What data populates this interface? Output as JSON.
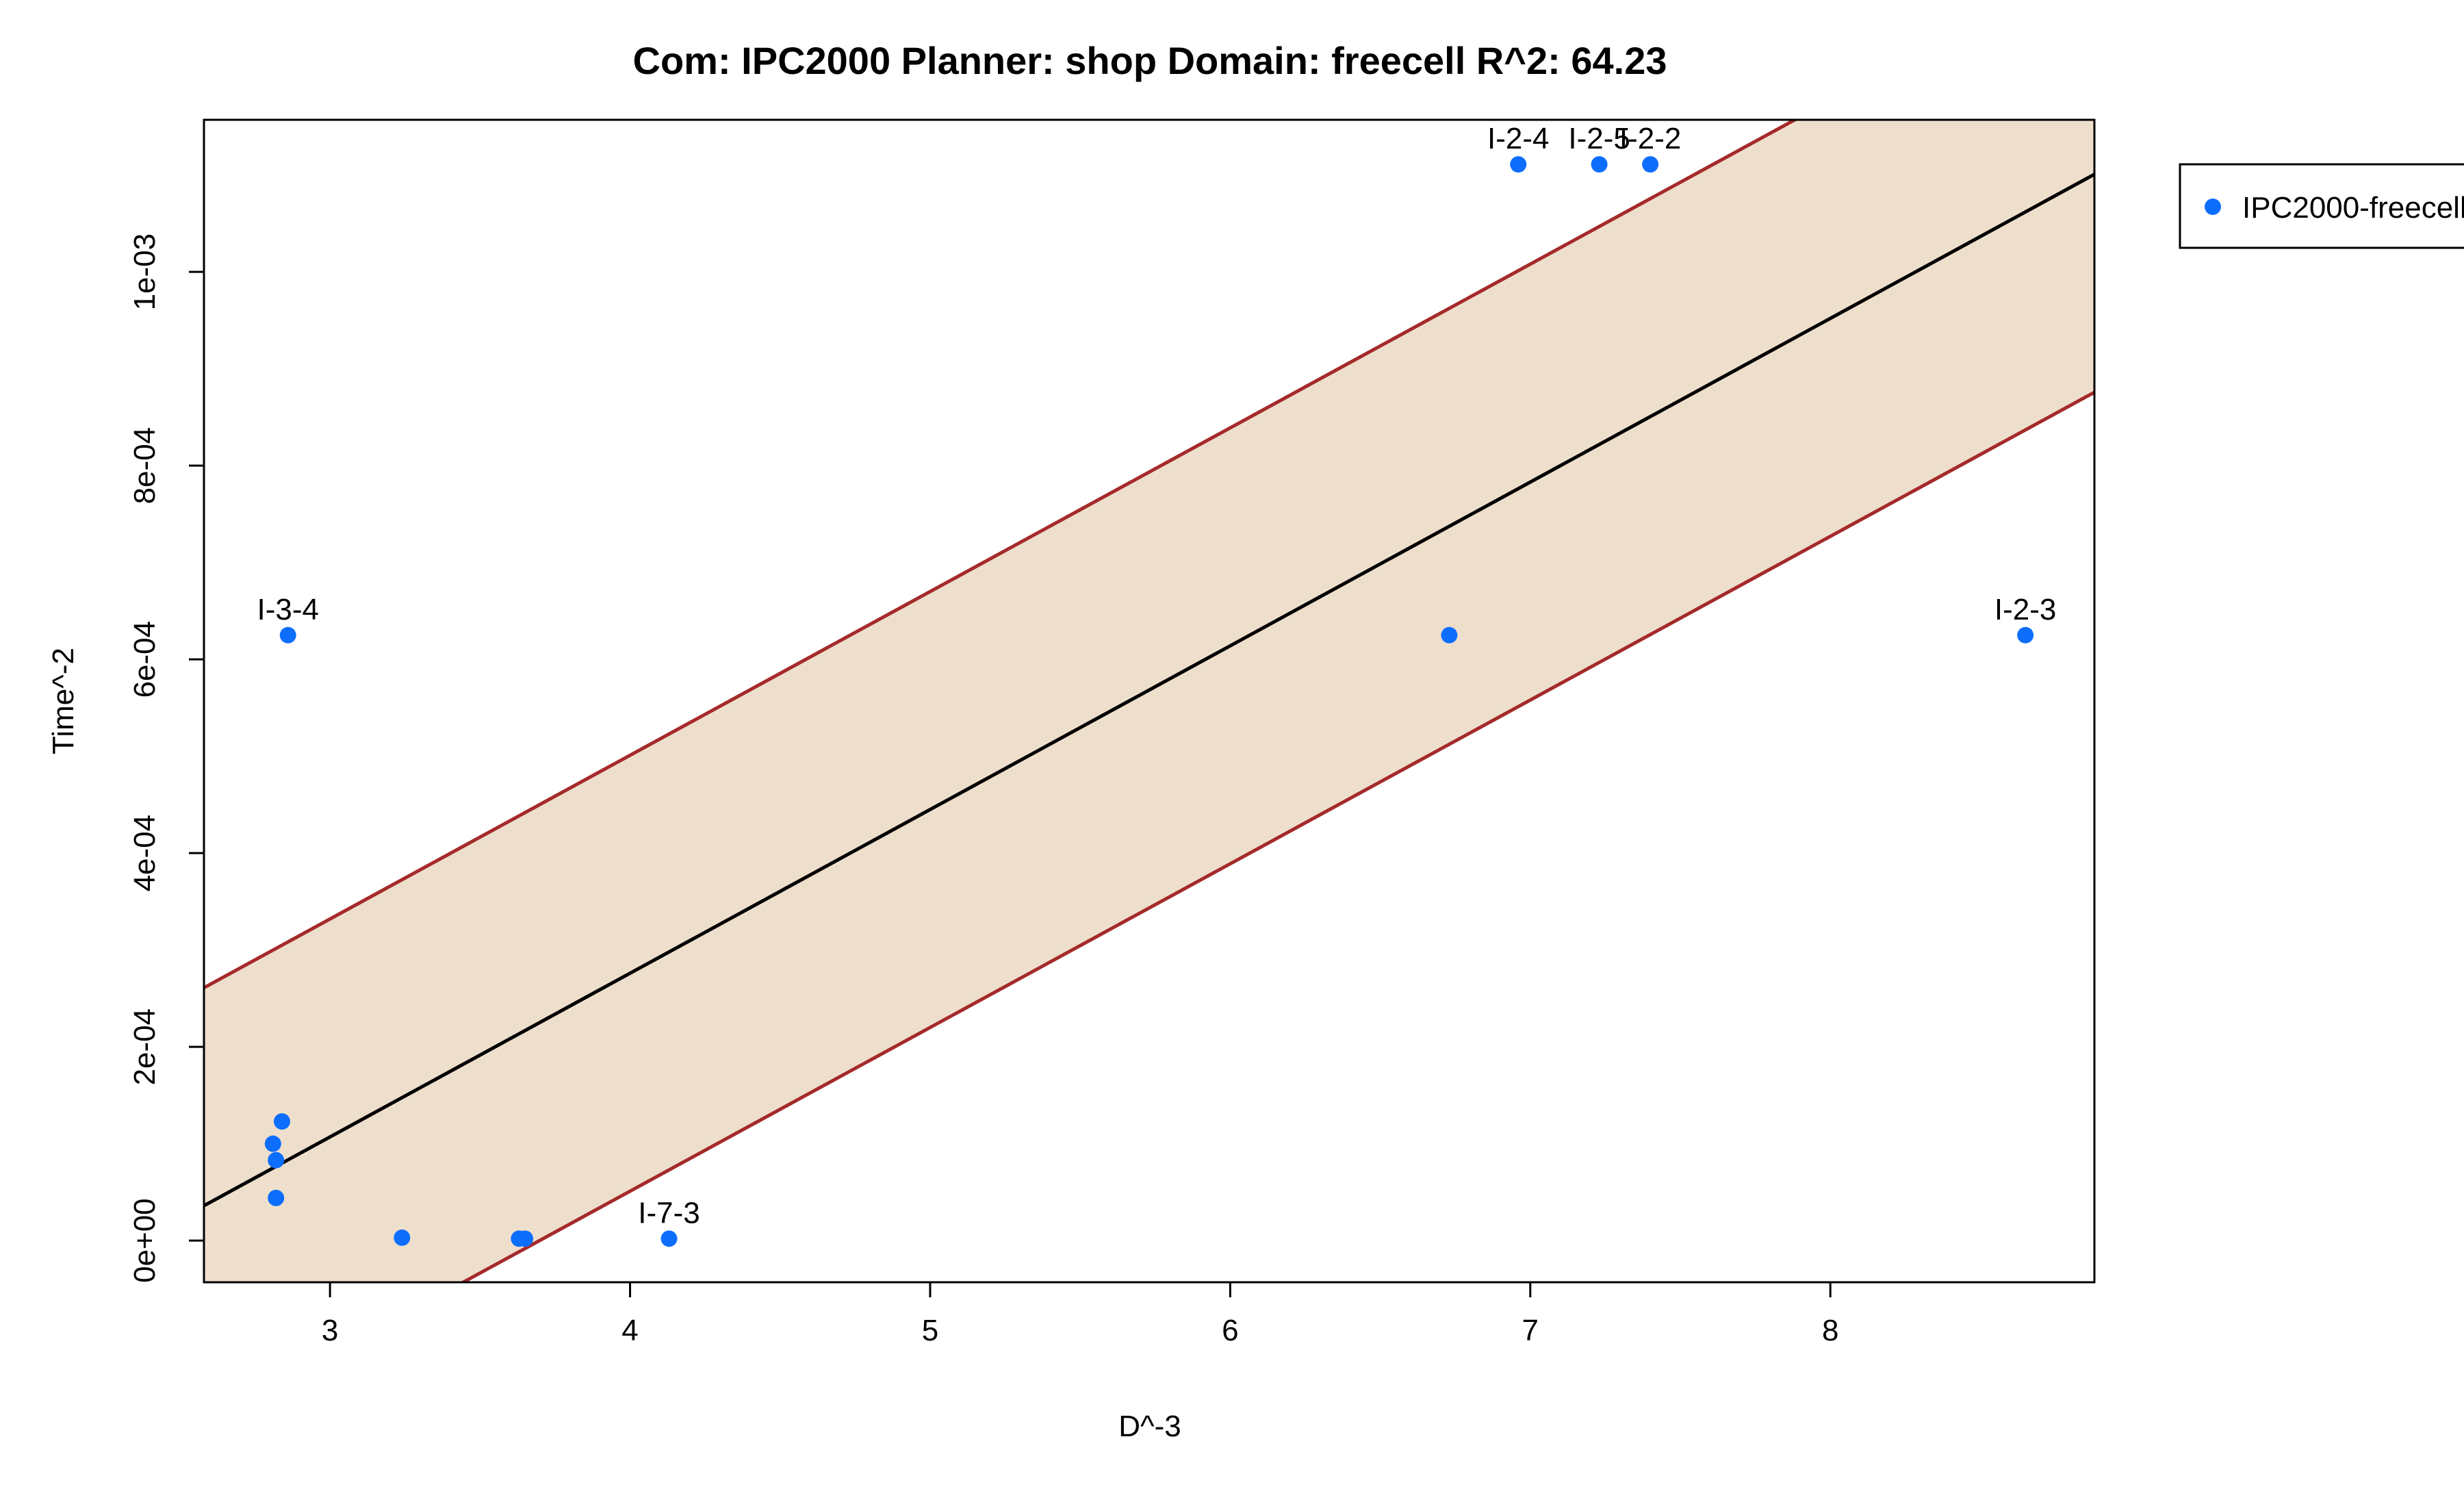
{
  "chart_data": {
    "type": "scatter",
    "title": "Com: IPC2000 Planner: shop Domain: freecell R^2: 64.23",
    "xlabel": "D^-3",
    "ylabel": "Time^-2",
    "xlim": [
      2.58,
      8.88
    ],
    "ylim": [
      -4.3e-05,
      0.001157
    ],
    "x_ticks": [
      3,
      4,
      5,
      6,
      7,
      8
    ],
    "x_tick_labels": [
      "3",
      "4",
      "5",
      "6",
      "7",
      "8"
    ],
    "y_ticks": [
      0,
      0.0002,
      0.0004,
      0.0006,
      0.0008,
      0.001
    ],
    "y_tick_labels": [
      "0e+00",
      "2e-04",
      "4e-04",
      "6e-04",
      "8e-04",
      "1e-03"
    ],
    "grid": false,
    "legend": {
      "placement": "top-right-outside",
      "entries": [
        {
          "label": "IPC2000-freecell",
          "color": "#0d6efd"
        }
      ]
    },
    "series": [
      {
        "name": "IPC2000-freecell",
        "color": "#0d6efd",
        "points": [
          {
            "x": 2.86,
            "y": 0.000625,
            "label": "I-3-4"
          },
          {
            "x": 2.84,
            "y": 0.000123,
            "label": ""
          },
          {
            "x": 2.81,
            "y": 0.0001,
            "label": ""
          },
          {
            "x": 2.82,
            "y": 8.3e-05,
            "label": ""
          },
          {
            "x": 2.82,
            "y": 4.4e-05,
            "label": ""
          },
          {
            "x": 3.24,
            "y": 3e-06,
            "label": ""
          },
          {
            "x": 3.63,
            "y": 2e-06,
            "label": ""
          },
          {
            "x": 3.65,
            "y": 2e-06,
            "label": ""
          },
          {
            "x": 4.13,
            "y": 2e-06,
            "label": "I-7-3"
          },
          {
            "x": 6.73,
            "y": 0.000625,
            "label": ""
          },
          {
            "x": 6.96,
            "y": 0.001111,
            "label": "I-2-4"
          },
          {
            "x": 7.23,
            "y": 0.001111,
            "label": "I-2-5"
          },
          {
            "x": 7.4,
            "y": 0.001111,
            "label": "I-2-2"
          },
          {
            "x": 8.65,
            "y": 0.000625,
            "label": "I-2-3"
          }
        ]
      }
    ],
    "fit_line": {
      "slope": 0.000169,
      "intercept": -0.0004,
      "color": "#000000"
    },
    "band": {
      "half_width": 0.000225,
      "fill_color": "#eedfcc",
      "edge_color": "#a52a2a"
    }
  }
}
